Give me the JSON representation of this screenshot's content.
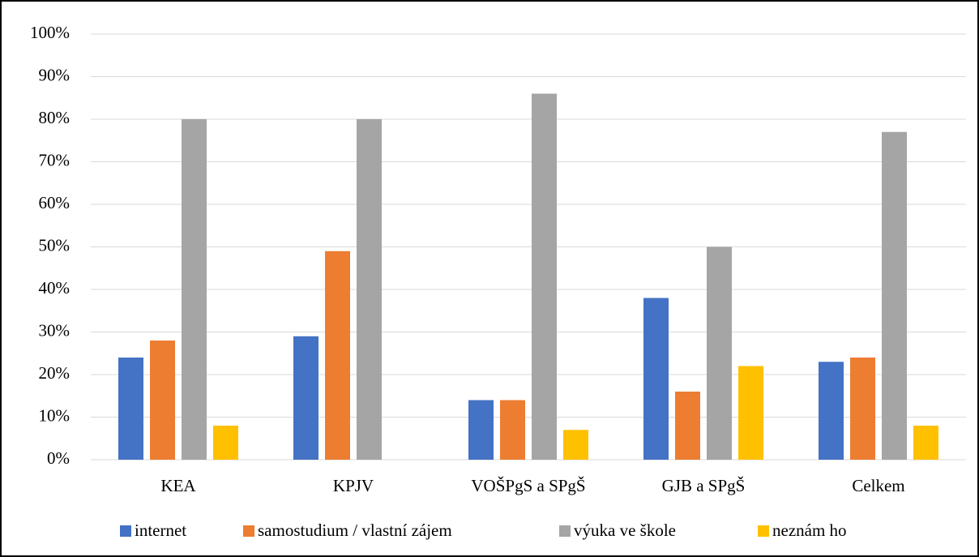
{
  "chart_data": {
    "type": "bar",
    "categories": [
      "KEA",
      "KPJV",
      "VOŠPgS a SPgŠ",
      "GJB a SPgŠ",
      "Celkem"
    ],
    "series": [
      {
        "name": "internet",
        "color": "#4472c4",
        "values": [
          24,
          29,
          14,
          38,
          23
        ]
      },
      {
        "name": "samostudium / vlastní zájem",
        "color": "#ed7d31",
        "values": [
          28,
          49,
          14,
          16,
          24
        ]
      },
      {
        "name": "výuka ve škole",
        "color": "#a5a5a5",
        "values": [
          80,
          80,
          86,
          50,
          77
        ]
      },
      {
        "name": "neznám ho",
        "color": "#ffc000",
        "values": [
          8,
          0,
          7,
          22,
          8
        ]
      }
    ],
    "ylim": [
      0,
      100
    ],
    "yticks": [
      {
        "value": 0,
        "label": "0%"
      },
      {
        "value": 10,
        "label": "10%"
      },
      {
        "value": 20,
        "label": "20%"
      },
      {
        "value": 30,
        "label": "30%"
      },
      {
        "value": 40,
        "label": "40%"
      },
      {
        "value": 50,
        "label": "50%"
      },
      {
        "value": 60,
        "label": "60%"
      },
      {
        "value": 70,
        "label": "70%"
      },
      {
        "value": 80,
        "label": "80%"
      },
      {
        "value": 90,
        "label": "90%"
      },
      {
        "value": 100,
        "label": "100%"
      }
    ],
    "grid": true,
    "legend": "bottom"
  }
}
